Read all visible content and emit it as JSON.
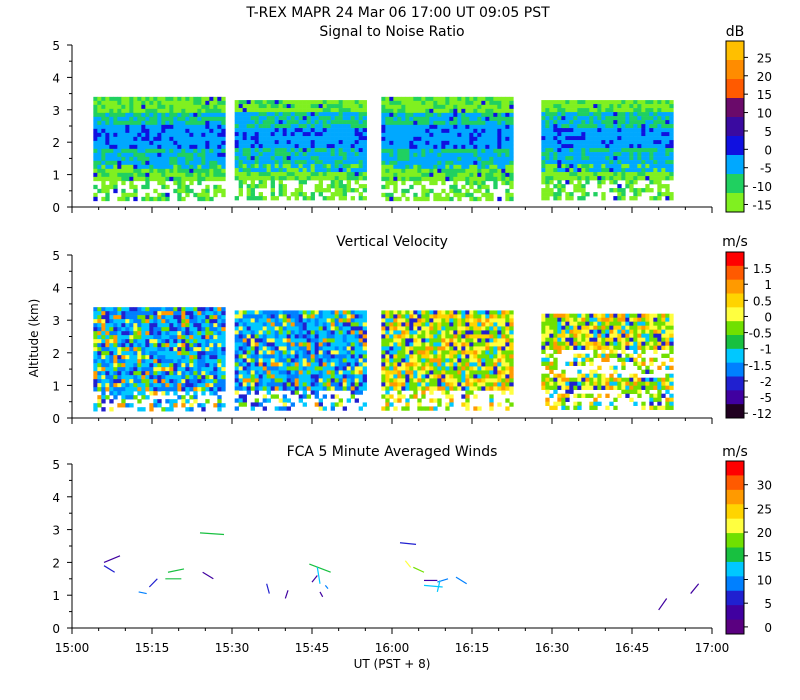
{
  "header": {
    "title": "T-REX   MAPR 24 Mar 06   17:00 UT   09:05   PST"
  },
  "axes": {
    "x_label": "UT  (PST + 8)",
    "y_label": "Altitude (km)",
    "x_ticks": [
      "15:00",
      "15:15",
      "15:30",
      "15:45",
      "16:00",
      "16:15",
      "16:30",
      "16:45",
      "17:00"
    ],
    "y_ticks": [
      "0",
      "1",
      "2",
      "3",
      "4",
      "5"
    ]
  },
  "chart_data": [
    {
      "type": "heatmap",
      "title": "Signal to Noise Ratio",
      "ylabel": "",
      "xlim": [
        0,
        120
      ],
      "ylim": [
        0,
        5
      ],
      "colorbar": {
        "unit": "dB",
        "labels": [
          "25",
          "20",
          "15",
          "10",
          "5",
          "0",
          "-5",
          "-10",
          "-15"
        ],
        "colors": [
          "#ffbf00",
          "#ff8c00",
          "#ff5a00",
          "#6a0a6a",
          "#3a0aa0",
          "#1010e0",
          "#00a8ff",
          "#20d060",
          "#80f020"
        ]
      },
      "segments": [
        {
          "x": [
            4,
            28
          ],
          "y": [
            0.3,
            3.4
          ]
        },
        {
          "x": [
            30.5,
            55
          ],
          "y": [
            0.3,
            3.3
          ]
        },
        {
          "x": [
            58,
            82.5
          ],
          "y": [
            0.3,
            3.4
          ]
        },
        {
          "x": [
            88,
            112.5
          ],
          "y": [
            0.3,
            3.3
          ]
        }
      ]
    },
    {
      "type": "heatmap",
      "title": "Vertical Velocity",
      "ylabel": "Altitude (km)",
      "xlim": [
        0,
        120
      ],
      "ylim": [
        0,
        5
      ],
      "colorbar": {
        "unit": "m/s",
        "labels": [
          "1.5",
          "1",
          "0.5",
          "0",
          "-0.5",
          "-1",
          "-1.5",
          "-2",
          "-5",
          "-12"
        ],
        "colors": [
          "#ff0000",
          "#ff5a00",
          "#ff9a00",
          "#ffd400",
          "#ffff40",
          "#70e000",
          "#18c040",
          "#00c8ff",
          "#0080ff",
          "#2020d0",
          "#4000a0",
          "#200020"
        ]
      },
      "segments": [
        {
          "x": [
            4,
            28
          ],
          "y": [
            0.3,
            3.4
          ]
        },
        {
          "x": [
            30.5,
            55
          ],
          "y": [
            0.3,
            3.3
          ]
        },
        {
          "x": [
            58,
            82.5
          ],
          "y": [
            0.3,
            3.3
          ]
        },
        {
          "x": [
            88,
            112.5
          ],
          "y": [
            0.3,
            3.2
          ]
        }
      ]
    },
    {
      "type": "scatter",
      "title": "FCA 5 Minute Averaged Winds",
      "ylabel": "",
      "xlim": [
        0,
        120
      ],
      "ylim": [
        0,
        5
      ],
      "colorbar": {
        "unit": "m/s",
        "labels": [
          "30",
          "25",
          "20",
          "15",
          "10",
          "5",
          "0"
        ],
        "colors": [
          "#ff0000",
          "#ff5a00",
          "#ff9a00",
          "#ffd400",
          "#ffff40",
          "#70e000",
          "#18c040",
          "#00c8ff",
          "#0080ff",
          "#2020d0",
          "#4000a0",
          "#5a0080"
        ]
      },
      "wind_barbs": [
        {
          "t": 6,
          "z": 2.0,
          "t2": 9,
          "z2": 2.2,
          "spd": 3
        },
        {
          "t": 6,
          "z": 1.9,
          "t2": 8,
          "z2": 1.7,
          "spd": 6
        },
        {
          "t": 12.5,
          "z": 1.1,
          "t2": 14,
          "z2": 1.05,
          "spd": 9
        },
        {
          "t": 14.5,
          "z": 1.25,
          "t2": 16,
          "z2": 1.5,
          "spd": 5
        },
        {
          "t": 18,
          "z": 1.7,
          "t2": 21,
          "z2": 1.8,
          "spd": 15
        },
        {
          "t": 17.5,
          "z": 1.5,
          "t2": 20.5,
          "z2": 1.5,
          "spd": 14
        },
        {
          "t": 24,
          "z": 2.9,
          "t2": 28.5,
          "z2": 2.85,
          "spd": 14
        },
        {
          "t": 24.5,
          "z": 1.7,
          "t2": 26.5,
          "z2": 1.5,
          "spd": 2
        },
        {
          "t": 36.5,
          "z": 1.35,
          "t2": 37,
          "z2": 1.05,
          "spd": 6
        },
        {
          "t": 40,
          "z": 0.9,
          "t2": 40.5,
          "z2": 1.15,
          "spd": 2
        },
        {
          "t": 45,
          "z": 1.4,
          "t2": 46,
          "z2": 1.6,
          "spd": 4
        },
        {
          "t": 44.5,
          "z": 1.95,
          "t2": 48.5,
          "z2": 1.7,
          "spd": 14
        },
        {
          "t": 46,
          "z": 1.85,
          "t2": 46.5,
          "z2": 1.35,
          "spd": 13
        },
        {
          "t": 47.5,
          "z": 1.3,
          "t2": 48,
          "z2": 1.2,
          "spd": 10
        },
        {
          "t": 46.5,
          "z": 1.1,
          "t2": 47,
          "z2": 0.95,
          "spd": 4
        },
        {
          "t": 61.5,
          "z": 2.6,
          "t2": 64.5,
          "z2": 2.55,
          "spd": 7
        },
        {
          "t": 62.5,
          "z": 2.05,
          "t2": 63.5,
          "z2": 1.85,
          "spd": 20
        },
        {
          "t": 64,
          "z": 1.85,
          "t2": 66,
          "z2": 1.7,
          "spd": 18
        },
        {
          "t": 66,
          "z": 1.45,
          "t2": 68.5,
          "z2": 1.45,
          "spd": 3
        },
        {
          "t": 66,
          "z": 1.3,
          "t2": 69.5,
          "z2": 1.25,
          "spd": 12
        },
        {
          "t": 68.5,
          "z": 1.4,
          "t2": 70.5,
          "z2": 1.5,
          "spd": 9
        },
        {
          "t": 72,
          "z": 1.55,
          "t2": 74,
          "z2": 1.35,
          "spd": 10
        },
        {
          "t": 68.5,
          "z": 1.1,
          "t2": 69,
          "z2": 1.45,
          "spd": 11
        },
        {
          "t": 110,
          "z": 0.55,
          "t2": 111.5,
          "z2": 0.9,
          "spd": 4
        },
        {
          "t": 116,
          "z": 1.05,
          "t2": 117.5,
          "z2": 1.35,
          "spd": 2
        }
      ]
    }
  ]
}
